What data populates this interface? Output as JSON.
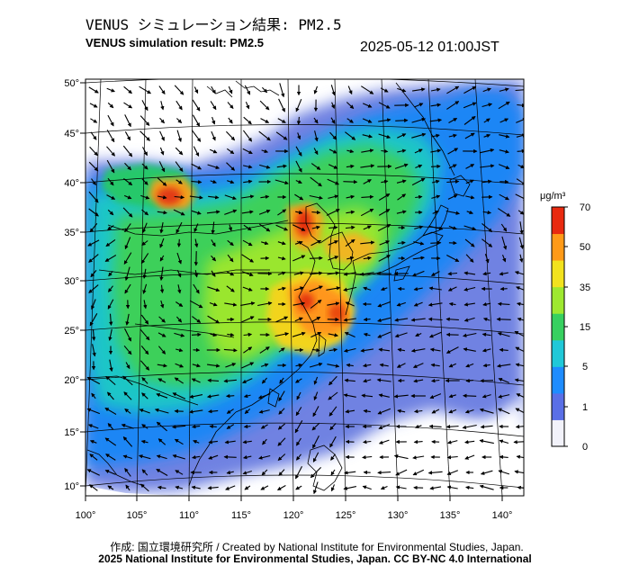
{
  "header": {
    "title_ja": "VENUS シミュレーション結果: PM2.5",
    "title_en": "VENUS simulation result: PM2.5",
    "timestamp": "2025-05-12 01:00JST"
  },
  "map": {
    "lon_ticks": [
      "100°",
      "105°",
      "110°",
      "115°",
      "120°",
      "125°",
      "130°",
      "135°",
      "140°"
    ],
    "lat_ticks": [
      "50°",
      "45°",
      "40°",
      "35°",
      "30°",
      "25°",
      "20°",
      "15°",
      "10°"
    ],
    "field": "PM2.5",
    "hotspots": [
      {
        "lon": 108,
        "lat": 38.5,
        "level": 65
      },
      {
        "lon": 121,
        "lat": 35.5,
        "level": 62
      },
      {
        "lon": 120.5,
        "lat": 28,
        "level": 60
      },
      {
        "lon": 124,
        "lat": 27,
        "level": 50
      },
      {
        "lon": 123,
        "lat": 33,
        "level": 40
      }
    ]
  },
  "colorbar": {
    "unit": "μg/m³",
    "ticks": [
      "70",
      "50",
      "35",
      "15",
      "5",
      "1",
      "0"
    ],
    "stops": [
      "#f2f2fa",
      "#5a6fe6",
      "#1e8cff",
      "#20c8d8",
      "#37d060",
      "#9ee830",
      "#f2e21e",
      "#ff9a18",
      "#e82a10"
    ]
  },
  "footer": {
    "credit": "作成: 国立環境研究所 / Created by National Institute for Environmental Studies, Japan.",
    "copyright": "2025 National Institute for Environmental Studies, Japan. CC BY-NC 4.0 International"
  }
}
